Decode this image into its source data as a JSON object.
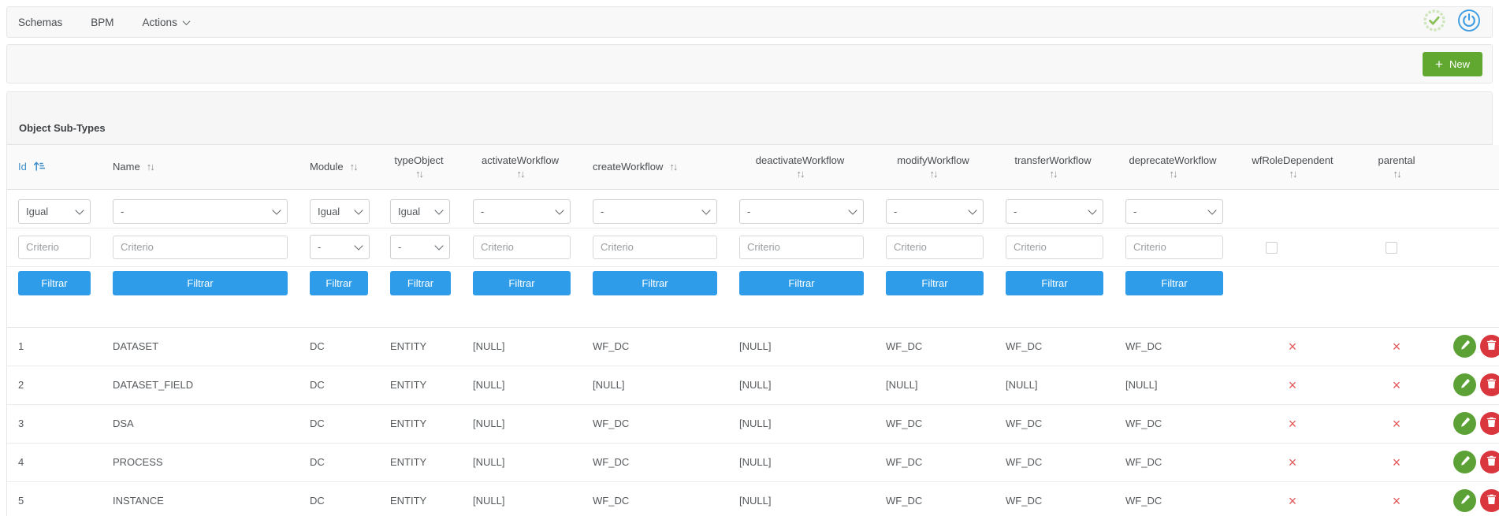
{
  "navbar": {
    "items": [
      {
        "id": "schemas",
        "label": "Schemas",
        "caret": false
      },
      {
        "id": "bpm",
        "label": "BPM",
        "caret": false
      },
      {
        "id": "actions",
        "label": "Actions",
        "caret": true
      }
    ],
    "right_icons": [
      {
        "id": "status-check",
        "icon": "check-badge-icon"
      },
      {
        "id": "logout",
        "icon": "power-icon"
      }
    ]
  },
  "toolbar": {
    "new_button_label": "New",
    "new_button_icon": "plus-icon"
  },
  "panel": {
    "title": "Object Sub-Types"
  },
  "table": {
    "columns": [
      {
        "key": "id",
        "label": "Id",
        "sort": "active-asc",
        "layout": "inline"
      },
      {
        "key": "name",
        "label": "Name",
        "sort": "both",
        "layout": "inline"
      },
      {
        "key": "module",
        "label": "Module",
        "sort": "both",
        "layout": "inline"
      },
      {
        "key": "typeObject",
        "label": "typeObject",
        "sort": "both",
        "layout": "stacked"
      },
      {
        "key": "activateWorkflow",
        "label": "activateWorkflow",
        "sort": "both",
        "layout": "stacked"
      },
      {
        "key": "createWorkflow",
        "label": "createWorkflow",
        "sort": "both",
        "layout": "inline"
      },
      {
        "key": "deactivateWorkflow",
        "label": "deactivateWorkflow",
        "sort": "both",
        "layout": "stacked"
      },
      {
        "key": "modifyWorkflow",
        "label": "modifyWorkflow",
        "sort": "both",
        "layout": "stacked"
      },
      {
        "key": "transferWorkflow",
        "label": "transferWorkflow",
        "sort": "both",
        "layout": "stacked"
      },
      {
        "key": "deprecateWorkflow",
        "label": "deprecateWorkflow",
        "sort": "both",
        "layout": "stacked"
      },
      {
        "key": "wfRoleDependent",
        "label": "wfRoleDependent",
        "sort": "both",
        "layout": "stacked"
      },
      {
        "key": "parental",
        "label": "parental",
        "sort": "both",
        "layout": "stacked"
      },
      {
        "key": "actions",
        "label": "",
        "sort": "none",
        "layout": "inline"
      }
    ],
    "filters": {
      "operator_selects": {
        "id": "Igual",
        "name": "-",
        "module": "Igual",
        "typeObject": "Igual",
        "activateWorkflow": "-",
        "createWorkflow": "-",
        "deactivateWorkflow": "-",
        "modifyWorkflow": "-",
        "transferWorkflow": "-",
        "deprecateWorkflow": "-"
      },
      "criteria_row": {
        "id": {
          "type": "input",
          "placeholder": "Criterio",
          "value": ""
        },
        "name": {
          "type": "input",
          "placeholder": "Criterio",
          "value": ""
        },
        "module": {
          "type": "select",
          "value": "-"
        },
        "typeObject": {
          "type": "select",
          "value": "-"
        },
        "activateWorkflow": {
          "type": "input",
          "placeholder": "Criterio",
          "value": ""
        },
        "createWorkflow": {
          "type": "input",
          "placeholder": "Criterio",
          "value": ""
        },
        "deactivateWorkflow": {
          "type": "input",
          "placeholder": "Criterio",
          "value": ""
        },
        "modifyWorkflow": {
          "type": "input",
          "placeholder": "Criterio",
          "value": ""
        },
        "transferWorkflow": {
          "type": "input",
          "placeholder": "Criterio",
          "value": ""
        },
        "deprecateWorkflow": {
          "type": "input",
          "placeholder": "Criterio",
          "value": ""
        },
        "wfRoleDependent": {
          "type": "checkbox",
          "checked": false
        },
        "parental": {
          "type": "checkbox",
          "checked": false
        }
      },
      "filter_button_label": "Filtrar",
      "filter_button_columns": [
        "id",
        "name",
        "module",
        "typeObject",
        "activateWorkflow",
        "createWorkflow",
        "deactivateWorkflow",
        "modifyWorkflow",
        "transferWorkflow",
        "deprecateWorkflow"
      ]
    },
    "x_glyph": "×",
    "rows": [
      {
        "id": "1",
        "name": "DATASET",
        "module": "DC",
        "typeObject": "ENTITY",
        "activateWorkflow": "[NULL]",
        "createWorkflow": "WF_DC",
        "deactivateWorkflow": "[NULL]",
        "modifyWorkflow": "WF_DC",
        "transferWorkflow": "WF_DC",
        "deprecateWorkflow": "WF_DC",
        "wfRoleDependent": false,
        "parental": false
      },
      {
        "id": "2",
        "name": "DATASET_FIELD",
        "module": "DC",
        "typeObject": "ENTITY",
        "activateWorkflow": "[NULL]",
        "createWorkflow": "[NULL]",
        "deactivateWorkflow": "[NULL]",
        "modifyWorkflow": "[NULL]",
        "transferWorkflow": "[NULL]",
        "deprecateWorkflow": "[NULL]",
        "wfRoleDependent": false,
        "parental": false
      },
      {
        "id": "3",
        "name": "DSA",
        "module": "DC",
        "typeObject": "ENTITY",
        "activateWorkflow": "[NULL]",
        "createWorkflow": "WF_DC",
        "deactivateWorkflow": "[NULL]",
        "modifyWorkflow": "WF_DC",
        "transferWorkflow": "WF_DC",
        "deprecateWorkflow": "WF_DC",
        "wfRoleDependent": false,
        "parental": false
      },
      {
        "id": "4",
        "name": "PROCESS",
        "module": "DC",
        "typeObject": "ENTITY",
        "activateWorkflow": "[NULL]",
        "createWorkflow": "WF_DC",
        "deactivateWorkflow": "[NULL]",
        "modifyWorkflow": "WF_DC",
        "transferWorkflow": "WF_DC",
        "deprecateWorkflow": "WF_DC",
        "wfRoleDependent": false,
        "parental": false
      },
      {
        "id": "5",
        "name": "INSTANCE",
        "module": "DC",
        "typeObject": "ENTITY",
        "activateWorkflow": "[NULL]",
        "createWorkflow": "WF_DC",
        "deactivateWorkflow": "[NULL]",
        "modifyWorkflow": "WF_DC",
        "transferWorkflow": "WF_DC",
        "deprecateWorkflow": "WF_DC",
        "wfRoleDependent": false,
        "parental": false
      }
    ],
    "row_actions": [
      {
        "id": "edit",
        "icon": "pencil-icon"
      },
      {
        "id": "delete",
        "icon": "trash-icon"
      }
    ]
  },
  "colors": {
    "accent_blue": "#2e9ce8",
    "link_blue": "#3e8fc9",
    "new_button_green": "#61a831",
    "edit_green": "#5ba135",
    "delete_red": "#d9363e",
    "x_red": "#e25757",
    "power_blue": "#3e9de2",
    "badge_green": "#8bc058"
  }
}
